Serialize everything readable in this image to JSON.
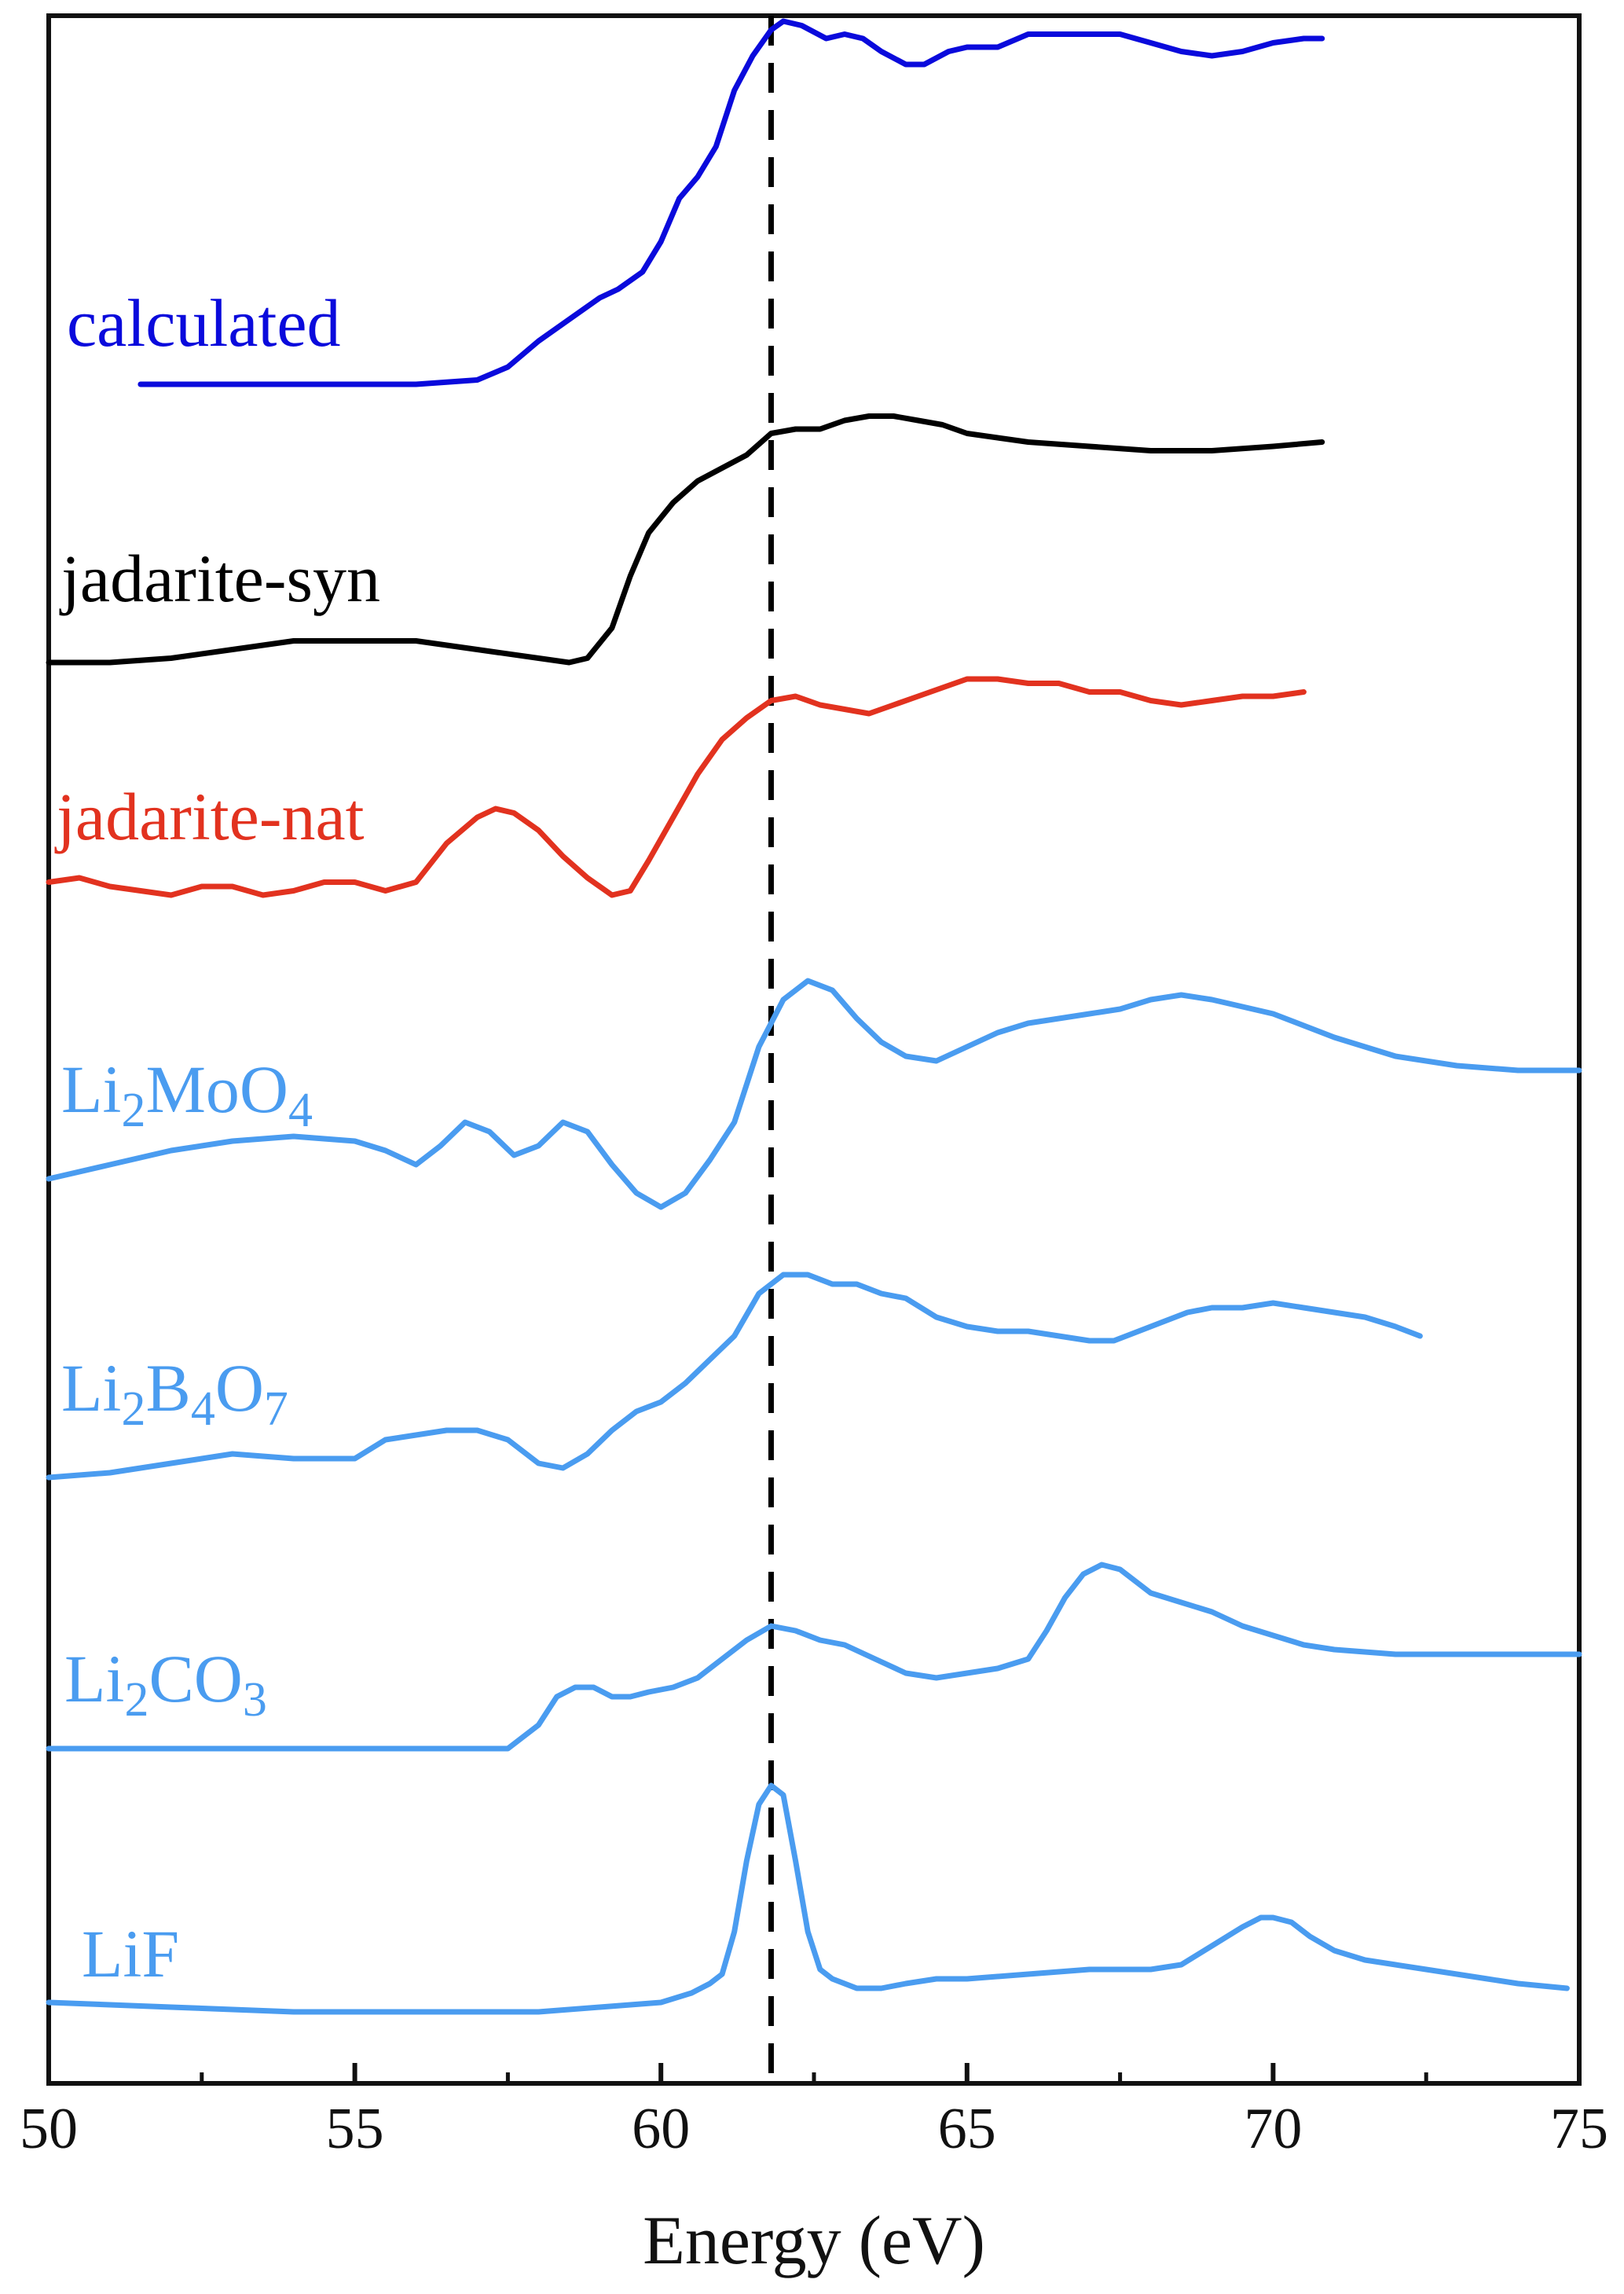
{
  "chart_data": {
    "type": "line",
    "title": "",
    "xlabel": "Energy (eV)",
    "ylabel": "",
    "xlim": [
      50,
      75
    ],
    "xticks": [
      50,
      55,
      60,
      65,
      70,
      75
    ],
    "yaxis_ticks": false,
    "grid": false,
    "reference_line": {
      "x": 61.8,
      "style": "dashed",
      "color": "#000000"
    },
    "series": [
      {
        "name": "calculated",
        "name_parts": [
          "calculated"
        ],
        "color": "#0a0adc",
        "x": [
          51.5,
          52,
          53,
          54,
          55,
          56,
          57,
          57.5,
          58,
          58.5,
          59,
          59.3,
          59.7,
          60,
          60.3,
          60.6,
          60.9,
          61.2,
          61.5,
          61.8,
          62,
          62.3,
          62.7,
          63,
          63.3,
          63.6,
          64,
          64.3,
          64.7,
          65,
          65.5,
          66,
          66.5,
          67,
          67.5,
          68,
          68.5,
          69,
          69.5,
          70,
          70.5,
          70.8
        ],
        "y": [
          0.02,
          0.02,
          0.02,
          0.02,
          0.02,
          0.02,
          0.03,
          0.06,
          0.12,
          0.17,
          0.22,
          0.24,
          0.28,
          0.35,
          0.45,
          0.5,
          0.57,
          0.7,
          0.78,
          0.84,
          0.86,
          0.85,
          0.82,
          0.83,
          0.82,
          0.79,
          0.76,
          0.76,
          0.79,
          0.8,
          0.8,
          0.83,
          0.83,
          0.83,
          0.83,
          0.81,
          0.79,
          0.78,
          0.79,
          0.81,
          0.82,
          0.82
        ]
      },
      {
        "name": "jadarite-syn",
        "name_parts": [
          "jadarite-syn"
        ],
        "color": "#000000",
        "x": [
          50,
          51,
          52,
          53,
          54,
          55,
          56,
          57,
          58,
          58.5,
          58.8,
          59.2,
          59.5,
          59.8,
          60.2,
          60.6,
          61,
          61.4,
          61.8,
          62.2,
          62.6,
          63,
          63.4,
          63.8,
          64.2,
          64.6,
          65,
          66,
          67,
          68,
          69,
          70,
          70.8
        ],
        "y": [
          0.0,
          0.0,
          0.01,
          0.03,
          0.05,
          0.05,
          0.05,
          0.03,
          0.01,
          0.0,
          0.01,
          0.08,
          0.2,
          0.3,
          0.37,
          0.42,
          0.45,
          0.48,
          0.53,
          0.54,
          0.54,
          0.56,
          0.57,
          0.57,
          0.56,
          0.55,
          0.53,
          0.51,
          0.5,
          0.49,
          0.49,
          0.5,
          0.51
        ]
      },
      {
        "name": "jadarite-nat",
        "name_parts": [
          "jadarite-nat"
        ],
        "color": "#e2321f",
        "x": [
          50,
          50.5,
          51,
          51.5,
          52,
          52.5,
          53,
          53.5,
          54,
          54.5,
          55,
          55.5,
          56,
          56.5,
          57,
          57.3,
          57.6,
          58,
          58.4,
          58.8,
          59.2,
          59.5,
          59.8,
          60.2,
          60.6,
          61,
          61.4,
          61.8,
          62.2,
          62.6,
          63,
          63.4,
          63.8,
          64.2,
          64.6,
          65,
          65.5,
          66,
          66.5,
          67,
          67.5,
          68,
          68.5,
          69,
          69.5,
          70,
          70.5
        ],
        "y": [
          0.05,
          0.06,
          0.04,
          0.03,
          0.02,
          0.04,
          0.04,
          0.02,
          0.03,
          0.05,
          0.05,
          0.03,
          0.05,
          0.14,
          0.2,
          0.22,
          0.21,
          0.17,
          0.11,
          0.06,
          0.02,
          0.03,
          0.1,
          0.2,
          0.3,
          0.38,
          0.43,
          0.47,
          0.48,
          0.46,
          0.45,
          0.44,
          0.46,
          0.48,
          0.5,
          0.52,
          0.52,
          0.51,
          0.51,
          0.49,
          0.49,
          0.47,
          0.46,
          0.47,
          0.48,
          0.48,
          0.49
        ]
      },
      {
        "name": "Li2MoO4",
        "name_parts": [
          "Li",
          "2",
          "MoO",
          "4"
        ],
        "color": "#4a9cf0",
        "x": [
          50,
          51,
          52,
          53,
          54,
          55,
          55.5,
          56,
          56.4,
          56.8,
          57.2,
          57.6,
          58,
          58.4,
          58.8,
          59.2,
          59.6,
          60,
          60.4,
          60.8,
          61.2,
          61.6,
          62,
          62.4,
          62.8,
          63.2,
          63.6,
          64,
          64.5,
          65,
          65.5,
          66,
          66.5,
          67,
          67.5,
          68,
          68.5,
          69,
          70,
          71,
          72,
          73,
          74,
          75
        ],
        "y": [
          0.0,
          0.03,
          0.06,
          0.08,
          0.09,
          0.08,
          0.06,
          0.03,
          0.07,
          0.12,
          0.1,
          0.05,
          0.07,
          0.12,
          0.1,
          0.03,
          -0.03,
          -0.06,
          -0.03,
          0.04,
          0.12,
          0.28,
          0.38,
          0.42,
          0.4,
          0.34,
          0.29,
          0.26,
          0.25,
          0.28,
          0.31,
          0.33,
          0.34,
          0.35,
          0.36,
          0.38,
          0.39,
          0.38,
          0.35,
          0.3,
          0.26,
          0.24,
          0.23,
          0.23
        ]
      },
      {
        "name": "Li2B4O7",
        "name_parts": [
          "Li",
          "2",
          "B",
          "4",
          "O",
          "7"
        ],
        "color": "#4a9cf0",
        "x": [
          50,
          51,
          52,
          53,
          54,
          55,
          55.5,
          56,
          56.5,
          57,
          57.5,
          58,
          58.4,
          58.8,
          59.2,
          59.6,
          60,
          60.4,
          60.8,
          61.2,
          61.6,
          62,
          62.4,
          62.8,
          63.2,
          63.6,
          64,
          64.5,
          65,
          65.5,
          66,
          66.5,
          67,
          67.4,
          67.8,
          68.2,
          68.6,
          69,
          69.5,
          70,
          70.5,
          71,
          71.5,
          72,
          72.4
        ],
        "y": [
          0.0,
          0.01,
          0.03,
          0.05,
          0.04,
          0.04,
          0.08,
          0.09,
          0.1,
          0.1,
          0.08,
          0.03,
          0.02,
          0.05,
          0.1,
          0.14,
          0.16,
          0.2,
          0.25,
          0.3,
          0.39,
          0.43,
          0.43,
          0.41,
          0.41,
          0.39,
          0.38,
          0.34,
          0.32,
          0.31,
          0.31,
          0.3,
          0.29,
          0.29,
          0.31,
          0.33,
          0.35,
          0.36,
          0.36,
          0.37,
          0.36,
          0.35,
          0.34,
          0.32,
          0.3
        ]
      },
      {
        "name": "Li2CO3",
        "name_parts": [
          "Li",
          "2",
          "CO",
          "3"
        ],
        "color": "#4a9cf0",
        "x": [
          50,
          52,
          54,
          56,
          57.5,
          58,
          58.3,
          58.6,
          58.9,
          59.2,
          59.5,
          59.8,
          60.2,
          60.6,
          61,
          61.4,
          61.8,
          62.2,
          62.6,
          63,
          63.5,
          64,
          64.5,
          65,
          65.5,
          66,
          66.3,
          66.6,
          66.9,
          67.2,
          67.5,
          67.8,
          68,
          68.5,
          69,
          69.5,
          70,
          70.5,
          71,
          72,
          73,
          74,
          75
        ],
        "y": [
          0.0,
          0.0,
          0.0,
          0.0,
          0.0,
          0.05,
          0.11,
          0.13,
          0.13,
          0.11,
          0.11,
          0.12,
          0.13,
          0.15,
          0.19,
          0.23,
          0.26,
          0.25,
          0.23,
          0.22,
          0.19,
          0.16,
          0.15,
          0.16,
          0.17,
          0.19,
          0.25,
          0.32,
          0.37,
          0.39,
          0.38,
          0.35,
          0.33,
          0.31,
          0.29,
          0.26,
          0.24,
          0.22,
          0.21,
          0.2,
          0.2,
          0.2,
          0.2
        ]
      },
      {
        "name": "LiF",
        "name_parts": [
          "LiF"
        ],
        "color": "#4a9cf0",
        "x": [
          50,
          52,
          54,
          56,
          58,
          59,
          60,
          60.5,
          60.8,
          61,
          61.2,
          61.4,
          61.6,
          61.8,
          62,
          62.2,
          62.4,
          62.6,
          62.8,
          63.2,
          63.6,
          64,
          64.5,
          65,
          66,
          67,
          67.5,
          68,
          68.5,
          69,
          69.5,
          69.8,
          70,
          70.3,
          70.6,
          71,
          71.5,
          72,
          72.5,
          73,
          73.5,
          74,
          74.8
        ],
        "y": [
          0.0,
          -0.01,
          -0.02,
          -0.02,
          -0.02,
          -0.01,
          0.0,
          0.02,
          0.04,
          0.06,
          0.15,
          0.3,
          0.42,
          0.46,
          0.44,
          0.3,
          0.15,
          0.07,
          0.05,
          0.03,
          0.03,
          0.04,
          0.05,
          0.05,
          0.06,
          0.07,
          0.07,
          0.07,
          0.08,
          0.12,
          0.16,
          0.18,
          0.18,
          0.17,
          0.14,
          0.11,
          0.09,
          0.08,
          0.07,
          0.06,
          0.05,
          0.04,
          0.03
        ]
      }
    ]
  }
}
